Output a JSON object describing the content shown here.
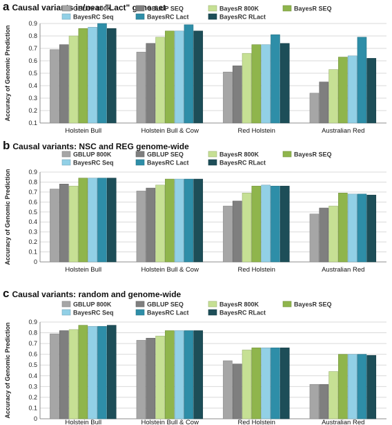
{
  "colors": {
    "GBLUP 800K": "#a6a6a6",
    "GBLUP SEQ": "#7f7f7f",
    "BayesR 800K": "#c6e094",
    "BayesR SEQ": "#8fb54c",
    "BayesRC Seq": "#92d0e6",
    "BayesRC Lact": "#2e8ea8",
    "BayesRC RLact": "#1d4e58"
  },
  "chart_data": [
    {
      "letter": "a",
      "title": "Causal variants in/near \"Lact\" gene set",
      "type": "bar",
      "ylabel": "Accuracy of Genomic Prediction",
      "ylim": [
        0.1,
        0.9
      ],
      "yticks": [
        "0.1",
        "0.2",
        "0.3",
        "0.4",
        "0.5",
        "0.6",
        "0.7",
        "0.8",
        "0.9"
      ],
      "grid": true,
      "legend": "top",
      "categories": [
        "Holstein Bull",
        "Holstein Bull & Cow",
        "Red Holstein",
        "Australian Red"
      ],
      "series": [
        {
          "name": "GBLUP 800K",
          "values": [
            0.69,
            0.67,
            0.51,
            0.34
          ]
        },
        {
          "name": "GBLUP SEQ",
          "values": [
            0.73,
            0.74,
            0.56,
            0.43
          ]
        },
        {
          "name": "BayesR 800K",
          "values": [
            0.8,
            0.79,
            0.66,
            0.53
          ]
        },
        {
          "name": "BayesR SEQ",
          "values": [
            0.86,
            0.84,
            0.73,
            0.63
          ]
        },
        {
          "name": "BayesRC Seq",
          "values": [
            0.87,
            0.84,
            0.73,
            0.64
          ]
        },
        {
          "name": "BayesRC Lact",
          "values": [
            0.9,
            0.89,
            0.81,
            0.79
          ]
        },
        {
          "name": "BayesRC RLact",
          "values": [
            0.86,
            0.84,
            0.74,
            0.62
          ]
        }
      ]
    },
    {
      "letter": "b",
      "title": "Causal variants: NSC and REG genome-wide",
      "type": "bar",
      "ylabel": "Accuracy of Genomic Prediction",
      "ylim": [
        0,
        0.9
      ],
      "yticks": [
        "0",
        "0.1",
        "0.2",
        "0.3",
        "0.4",
        "0.5",
        "0.6",
        "0.7",
        "0.8",
        "0.9"
      ],
      "grid": true,
      "legend": "top",
      "categories": [
        "Holstein Bull",
        "Holstein Bull & Cow",
        "Red Holstein",
        "Australian Red"
      ],
      "series": [
        {
          "name": "GBLUP 800K",
          "values": [
            0.73,
            0.71,
            0.56,
            0.48
          ]
        },
        {
          "name": "GBLUP SEQ",
          "values": [
            0.78,
            0.74,
            0.61,
            0.54
          ]
        },
        {
          "name": "BayesR 800K",
          "values": [
            0.76,
            0.77,
            0.69,
            0.56
          ]
        },
        {
          "name": "BayesR SEQ",
          "values": [
            0.84,
            0.83,
            0.76,
            0.69
          ]
        },
        {
          "name": "BayesRC Seq",
          "values": [
            0.84,
            0.83,
            0.77,
            0.68
          ]
        },
        {
          "name": "BayesRC Lact",
          "values": [
            0.84,
            0.83,
            0.76,
            0.68
          ]
        },
        {
          "name": "BayesRC RLact",
          "values": [
            0.84,
            0.83,
            0.76,
            0.67
          ]
        }
      ]
    },
    {
      "letter": "c",
      "title": "Causal variants: random and genome-wide",
      "type": "bar",
      "ylabel": "Accuracy of Genomic Prediction",
      "ylim": [
        0,
        0.9
      ],
      "yticks": [
        "0",
        "0.1",
        "0.2",
        "0.3",
        "0.4",
        "0.5",
        "0.6",
        "0.7",
        "0.8",
        "0.9"
      ],
      "grid": true,
      "legend": "top",
      "categories": [
        "Holstein Bull",
        "Holstein Bull & Cow",
        "Red Holstein",
        "Australian Red"
      ],
      "series": [
        {
          "name": "GBLUP 800K",
          "values": [
            0.79,
            0.73,
            0.54,
            0.32
          ]
        },
        {
          "name": "GBLUP SEQ",
          "values": [
            0.82,
            0.75,
            0.51,
            0.32
          ]
        },
        {
          "name": "BayesR 800K",
          "values": [
            0.83,
            0.77,
            0.64,
            0.44
          ]
        },
        {
          "name": "BayesR SEQ",
          "values": [
            0.87,
            0.82,
            0.66,
            0.6
          ]
        },
        {
          "name": "BayesRC Seq",
          "values": [
            0.86,
            0.82,
            0.66,
            0.6
          ]
        },
        {
          "name": "BayesRC Lact",
          "values": [
            0.86,
            0.82,
            0.66,
            0.6
          ]
        },
        {
          "name": "BayesRC RLact",
          "values": [
            0.87,
            0.82,
            0.66,
            0.59
          ]
        }
      ]
    }
  ]
}
